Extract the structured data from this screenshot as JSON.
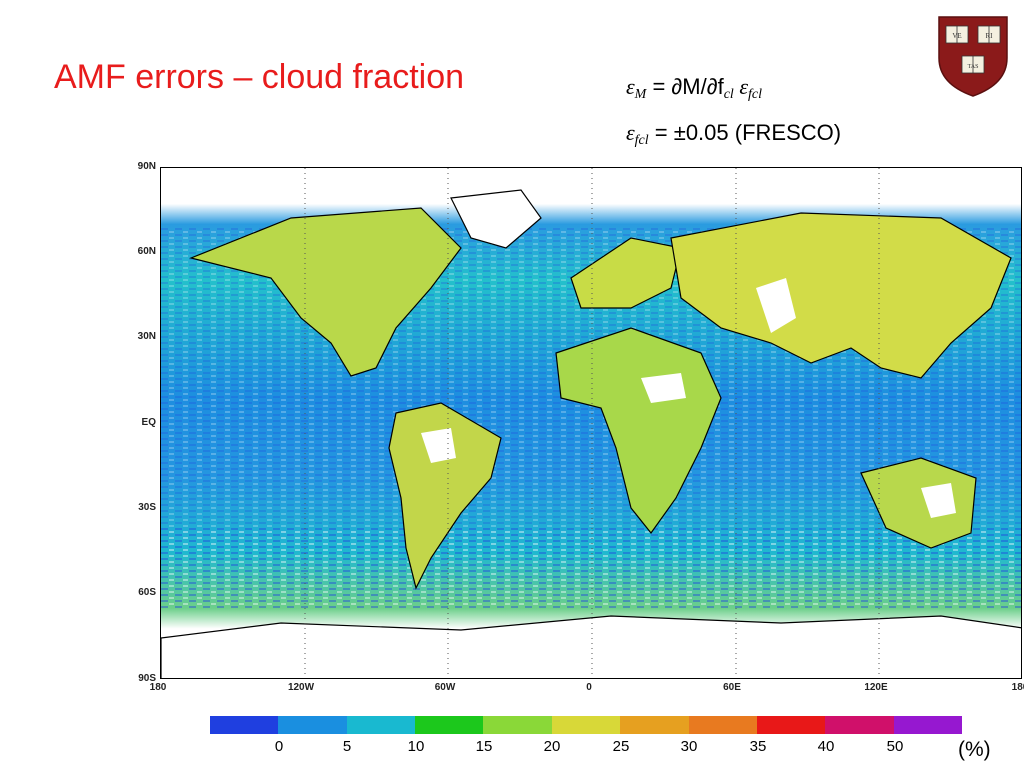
{
  "title": "AMF errors – cloud fraction",
  "equation1": {
    "eps1": "ε",
    "sub1": "M",
    "mid": " = ∂M/∂f",
    "sub2": "cl",
    "eps2": " ε",
    "sub3": "fcl"
  },
  "equation2": {
    "eps": "ε",
    "sub": "fcl",
    "rest": " = ±0.05 (FRESCO)"
  },
  "crest": {
    "icon": "shield-crest-icon",
    "color": "#8b1a1a",
    "texts": [
      "VE",
      "RI",
      "TAS"
    ]
  },
  "map": {
    "lat_labels": [
      "90N",
      "60N",
      "30N",
      "EQ",
      "30S",
      "60S",
      "90S"
    ],
    "lon_labels": [
      "180",
      "120W",
      "60W",
      "0",
      "60E",
      "120E",
      "180"
    ]
  },
  "colorbar": {
    "colors": [
      "#1f3fe0",
      "#1a8fe0",
      "#19b9d0",
      "#1cc81c",
      "#8ad838",
      "#d8d838",
      "#e6a020",
      "#e87a20",
      "#e81818",
      "#d0106a",
      "#9618d0"
    ],
    "ticks": [
      "0",
      "5",
      "10",
      "15",
      "20",
      "25",
      "30",
      "35",
      "40",
      "50"
    ],
    "unit": "(%)"
  }
}
